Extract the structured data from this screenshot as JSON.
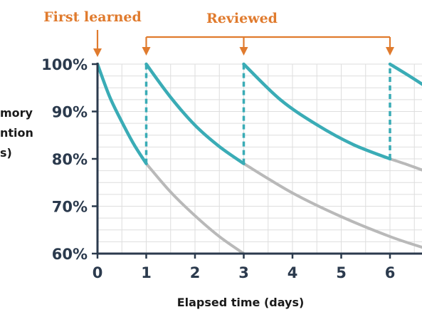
{
  "chart_data": {
    "type": "line",
    "title": "",
    "xlabel": "Elapsed time (days)",
    "ylabel_lines": [
      "Memory",
      "retention",
      "(%)"
    ],
    "ylabel_visible": [
      "mory",
      "ntion",
      "s)"
    ],
    "x_ticks": [
      "0",
      "1",
      "2",
      "3",
      "4",
      "5",
      "6"
    ],
    "y_ticks": [
      "60%",
      "70%",
      "80%",
      "90%",
      "100%"
    ],
    "xlim": [
      0,
      6.7
    ],
    "ylim": [
      60,
      100
    ],
    "grid": true,
    "annotations": {
      "first_learned": {
        "label": "First learned",
        "x": 0
      },
      "reviewed": {
        "label": "Reviewed",
        "x": [
          1,
          3,
          6
        ]
      }
    },
    "series": [
      {
        "role": "retention-with-reviews",
        "color": "#3aacb6",
        "segments": [
          {
            "x": [
              0,
              0.25,
              0.5,
              0.75,
              1
            ],
            "y": [
              100,
              93.1,
              87.8,
              83.0,
              79
            ]
          },
          {
            "x": [
              1,
              1.5,
              2,
              2.5,
              3
            ],
            "y": [
              100,
              93.0,
              87.1,
              82.6,
              79
            ]
          },
          {
            "x": [
              3,
              3.75,
              4.5,
              5.25,
              6
            ],
            "y": [
              100,
              92.5,
              87.2,
              83.0,
              80
            ]
          },
          {
            "x": [
              6,
              6.35,
              6.7
            ],
            "y": [
              100,
              97.8,
              95.5
            ]
          }
        ]
      },
      {
        "role": "forgetting-without-review",
        "color": "#b9b9b9",
        "segments": [
          {
            "x": [
              1,
              1.5,
              2,
              2.5,
              3
            ],
            "y": [
              79,
              73.0,
              68.0,
              63.6,
              60
            ]
          },
          {
            "x": [
              3,
              4,
              5,
              6,
              6.7
            ],
            "y": [
              79,
              72.8,
              67.8,
              63.6,
              61.2
            ]
          },
          {
            "x": [
              6,
              6.35,
              6.7
            ],
            "y": [
              80,
              78.8,
              77.5
            ]
          }
        ]
      }
    ],
    "review_drops": [
      {
        "x": 1,
        "from": 79,
        "to": 100
      },
      {
        "x": 3,
        "from": 79,
        "to": 100
      },
      {
        "x": 6,
        "from": 80,
        "to": 100
      }
    ]
  },
  "colors": {
    "axis": "#2b3a4d",
    "grid": "#dedede",
    "annotation": "#e07b2e",
    "teal": "#3aacb6",
    "gray": "#b9b9b9"
  }
}
